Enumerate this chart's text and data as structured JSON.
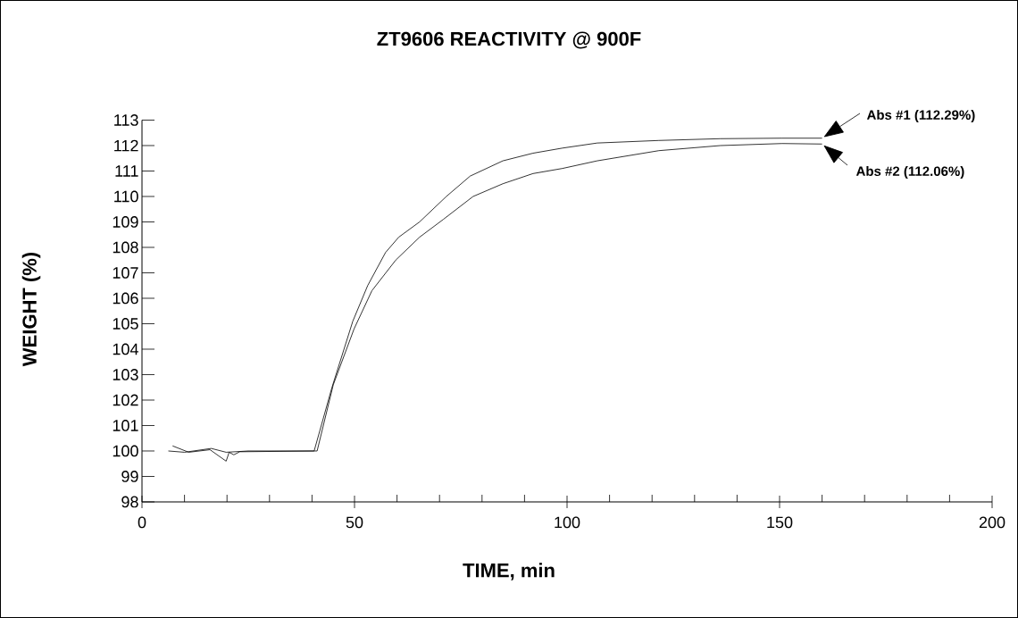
{
  "chart_data": {
    "type": "line",
    "title": "ZT9606 REACTIVITY @ 900F",
    "xlabel": "TIME, min",
    "ylabel": "WEIGHT (%)",
    "xlim": [
      0,
      200
    ],
    "ylim": [
      98,
      113
    ],
    "xticks": [
      0,
      {
        "value": 10,
        "label": null
      },
      {
        "value": 20,
        "label": null
      },
      {
        "value": 30,
        "label": null
      },
      {
        "value": 40,
        "label": null
      },
      50,
      {
        "value": 60,
        "label": null
      },
      {
        "value": 70,
        "label": null
      },
      {
        "value": 80,
        "label": null
      },
      {
        "value": 90,
        "label": null
      },
      100,
      {
        "value": 110,
        "label": null
      },
      {
        "value": 120,
        "label": null
      },
      {
        "value": 130,
        "label": null
      },
      {
        "value": 140,
        "label": null
      },
      150,
      {
        "value": 160,
        "label": null
      },
      {
        "value": 170,
        "label": null
      },
      {
        "value": 180,
        "label": null
      },
      {
        "value": 190,
        "label": null
      },
      200
    ],
    "yticks": [
      98,
      99,
      100,
      101,
      102,
      103,
      104,
      105,
      106,
      107,
      108,
      109,
      110,
      111,
      112,
      113
    ],
    "series": [
      {
        "color": "#000000",
        "x": [
          6.2,
          10,
          16.3,
          19.8,
          25,
          40.5,
          44.7,
          49.6,
          53.1,
          57.3,
          60.4,
          65.3,
          71.6,
          77.2,
          84.9,
          92,
          98.9,
          107.1,
          121.6,
          136.1,
          150.6,
          160
        ],
        "values": [
          100.0,
          99.95,
          100.1,
          99.95,
          100.0,
          100.0,
          102.5,
          105.1,
          106.5,
          107.8,
          108.4,
          109.0,
          110.0,
          110.8,
          111.4,
          111.7,
          111.9,
          112.1,
          112.2,
          112.27,
          112.29,
          112.29
        ]
      },
      {
        "color": "#000000",
        "x": [
          7.2,
          11,
          16,
          19.8,
          20.5,
          21.6,
          23,
          41.2,
          45,
          49.9,
          54.1,
          59.7,
          65.3,
          70.9,
          77.9,
          84.9,
          92,
          98.9,
          107.1,
          121.6,
          136.1,
          150.6,
          160
        ],
        "values": [
          100.2,
          99.95,
          100.05,
          99.6,
          99.95,
          99.85,
          99.97,
          100.0,
          102.6,
          104.8,
          106.3,
          107.5,
          108.4,
          109.1,
          110.0,
          110.5,
          110.9,
          111.1,
          111.4,
          111.8,
          112.0,
          112.08,
          112.06
        ]
      }
    ],
    "annotations": [
      "Abs #1 (112.29%)",
      "Abs #2 (112.06%)"
    ]
  }
}
